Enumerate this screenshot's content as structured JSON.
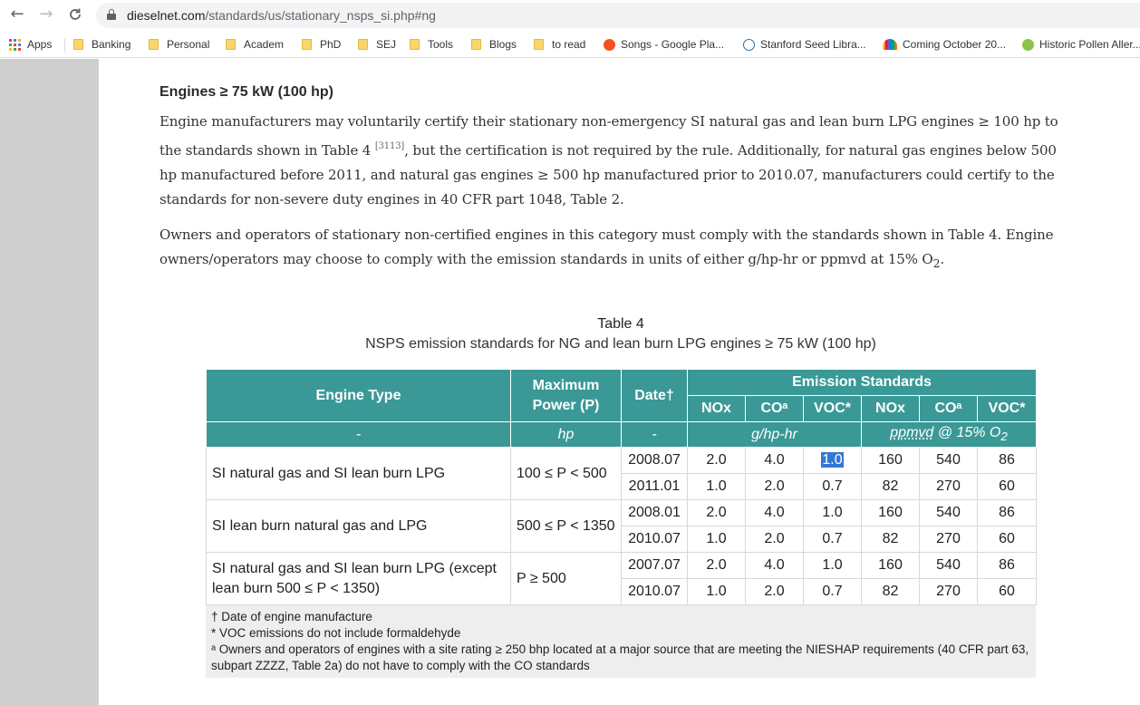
{
  "browser": {
    "url_domain": "dieselnet.com",
    "url_path": "/standards/us/stationary_nsps_si.php#ng",
    "back_glyph": "←",
    "forward_glyph": "→",
    "reload_glyph": "C"
  },
  "bookmarks": [
    {
      "label": "Apps",
      "icon": "apps-grid-icon"
    },
    {
      "label": "Banking",
      "icon": "folder-icon"
    },
    {
      "label": "Personal",
      "icon": "folder-icon"
    },
    {
      "label": "Academ",
      "icon": "folder-icon"
    },
    {
      "label": "PhD",
      "icon": "folder-icon"
    },
    {
      "label": "SEJ",
      "icon": "folder-icon"
    },
    {
      "label": "Tools",
      "icon": "folder-icon"
    },
    {
      "label": "Blogs",
      "icon": "folder-icon"
    },
    {
      "label": "to read",
      "icon": "folder-icon"
    },
    {
      "label": "Songs - Google Pla...",
      "icon": "google-play-music-icon"
    },
    {
      "label": "Stanford Seed Libra...",
      "icon": "wordpress-icon"
    },
    {
      "label": "Coming October 20...",
      "icon": "nbc-peacock-icon"
    },
    {
      "label": "Historic Pollen Aller...",
      "icon": "pollen-icon"
    }
  ],
  "page": {
    "heading": "Engines ≥ 75 kW (100 hp)",
    "para1_a": "Engine manufacturers may voluntarily certify their stationary non-emergency SI natural gas and lean burn LPG engines ≥ 100 hp to the standards shown in Table 4",
    "para1_ref": "[3113]",
    "para1_b": ", but the certification is not required by the rule. Additionally, for natural gas engines below 500 hp manufactured before 2011, and natural gas engines ≥ 500 hp manufactured prior to 2010.07, manufacturers could certify to the standards for non-severe duty engines in 40 CFR part 1048, Table 2.",
    "para2_a": "Owners and operators of stationary non-certified engines in this category must comply with the standards shown in Table 4. Engine owners/operators may choose to comply with the emission standards in units of either g/hp-hr or ppmvd at 15% O",
    "para2_sub": "2",
    "para2_b": "."
  },
  "table": {
    "title": "Table 4",
    "subtitle": "NSPS emission standards for NG and lean burn LPG engines ≥ 75 kW (100 hp)",
    "headers": {
      "engine_type": "Engine Type",
      "max_power": "Maximum Power (P)",
      "date": "Date†",
      "emission": "Emission Standards",
      "nox": "NOx",
      "co": "COᵃ",
      "voc": "VOC*"
    },
    "units": {
      "engine_type": "-",
      "power": "hp",
      "date": "-",
      "mass": "g/hp-hr",
      "ppm_a": "ppmvd",
      "ppm_b": " @ 15% O",
      "ppm_sub": "2"
    },
    "groups": [
      {
        "type": "SI natural gas and SI lean burn LPG",
        "power": "100 ≤ P < 500",
        "rows": [
          [
            "2008.07",
            "2.0",
            "4.0",
            "1.0",
            "160",
            "540",
            "86"
          ],
          [
            "2011.01",
            "1.0",
            "2.0",
            "0.7",
            "82",
            "270",
            "60"
          ]
        ]
      },
      {
        "type": "SI lean burn natural gas and LPG",
        "power": "500 ≤ P < 1350",
        "rows": [
          [
            "2008.01",
            "2.0",
            "4.0",
            "1.0",
            "160",
            "540",
            "86"
          ],
          [
            "2010.07",
            "1.0",
            "2.0",
            "0.7",
            "82",
            "270",
            "60"
          ]
        ]
      },
      {
        "type": "SI natural gas and SI lean burn LPG (except lean burn 500 ≤ P < 1350)",
        "power": "P ≥ 500",
        "rows": [
          [
            "2007.07",
            "2.0",
            "4.0",
            "1.0",
            "160",
            "540",
            "86"
          ],
          [
            "2010.07",
            "1.0",
            "2.0",
            "0.7",
            "82",
            "270",
            "60"
          ]
        ]
      }
    ],
    "notes": [
      "† Date of engine manufacture",
      "* VOC emissions do not include formaldehyde",
      "ᵃ Owners and operators of engines with a site rating ≥ 250 bhp located at a major source that are meeting the NIESHAP requirements (40 CFR part 63, subpart ZZZZ, Table 2a) do not have to comply with the CO standards"
    ]
  }
}
